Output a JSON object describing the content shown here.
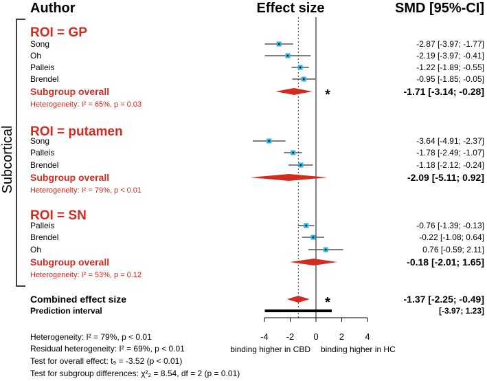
{
  "chart_data": {
    "type": "forest",
    "headers": {
      "author": "Author",
      "effect": "Effect size",
      "smd": "SMD [95%-CI]"
    },
    "group_label": "Subcortical",
    "xlim": [
      -4,
      4
    ],
    "x_ticks": [
      "-4",
      "-2",
      "0",
      "2",
      "4"
    ],
    "x_tick_values": [
      -4,
      -2,
      0,
      2,
      4
    ],
    "xlabel_left": "binding higher in CBD",
    "xlabel_right": "binding higher in HC",
    "subgroups": [
      {
        "title": "ROI = GP",
        "studies": [
          {
            "name": "Song",
            "smd": -2.87,
            "lo": -3.97,
            "hi": -1.77,
            "label": "-2.87 [-3.97; -1.77]"
          },
          {
            "name": "Oh",
            "smd": -2.19,
            "lo": -3.97,
            "hi": -0.41,
            "label": "-2.19 [-3.97; -0.41]"
          },
          {
            "name": "Palleis",
            "smd": -1.22,
            "lo": -1.89,
            "hi": -0.55,
            "label": "-1.22 [-1.89; -0.55]"
          },
          {
            "name": "Brendel",
            "smd": -0.95,
            "lo": -1.85,
            "hi": -0.05,
            "label": "-0.95 [-1.85; -0.05]"
          }
        ],
        "overall": {
          "name": "Subgroup overall",
          "smd": -1.71,
          "lo": -3.14,
          "hi": -0.28,
          "label": "-1.71 [-3.14; -0.28]",
          "marker": "*"
        },
        "heterogeneity": "Heterogeneity: I² = 65%, p = 0.03"
      },
      {
        "title": "ROI = putamen",
        "studies": [
          {
            "name": "Song",
            "smd": -3.64,
            "lo": -4.91,
            "hi": -2.37,
            "label": "-3.64 [-4.91; -2.37]"
          },
          {
            "name": "Palleis",
            "smd": -1.78,
            "lo": -2.49,
            "hi": -1.07,
            "label": "-1.78 [-2.49; -1.07]"
          },
          {
            "name": "Brendel",
            "smd": -1.18,
            "lo": -2.12,
            "hi": -0.24,
            "label": "-1.18 [-2.12; -0.24]"
          }
        ],
        "overall": {
          "name": "Subgroup overall",
          "smd": -2.09,
          "lo": -5.11,
          "hi": 0.92,
          "label": "-2.09 [-5.11;  0.92]",
          "marker": ""
        },
        "heterogeneity": "Heterogeneity: I² = 79%, p < 0.01"
      },
      {
        "title": "ROI = SN",
        "studies": [
          {
            "name": "Palleis",
            "smd": -0.76,
            "lo": -1.39,
            "hi": -0.13,
            "label": "-0.76 [-1.39; -0.13]"
          },
          {
            "name": "Brendel",
            "smd": -0.22,
            "lo": -1.08,
            "hi": 0.64,
            "label": "-0.22 [-1.08;  0.64]"
          },
          {
            "name": "Oh",
            "smd": 0.76,
            "lo": -0.59,
            "hi": 2.11,
            "label": "0.76 [-0.59;  2.11]"
          }
        ],
        "overall": {
          "name": "Subgroup overall",
          "smd": -0.18,
          "lo": -2.01,
          "hi": 1.65,
          "label": "-0.18 [-2.01;  1.65]",
          "marker": ""
        },
        "heterogeneity": "Heterogeneity: I² = 53%, p = 0.12"
      }
    ],
    "combined": {
      "name": "Combined effect size",
      "smd": -1.37,
      "lo": -2.25,
      "hi": -0.49,
      "label": "-1.37 [-2.25; -0.49]",
      "marker": "*"
    },
    "prediction": {
      "name": "Prediction interval",
      "lo": -3.97,
      "hi": 1.23,
      "label": "[-3.97;  1.23]"
    },
    "footer": [
      "Heterogeneity: I² = 79%, p < 0.01",
      "Residual heterogeneity: I² = 69%, p < 0.01",
      "Test for overall effect: t₉ = -3.52 (p < 0.01)",
      "Test for subgroup differences: χ²₂ = 8.54, df = 2 (p = 0.01)"
    ],
    "colors": {
      "accent": "#d42a1f",
      "point": "#29b6e6",
      "ci": "#555555"
    }
  }
}
